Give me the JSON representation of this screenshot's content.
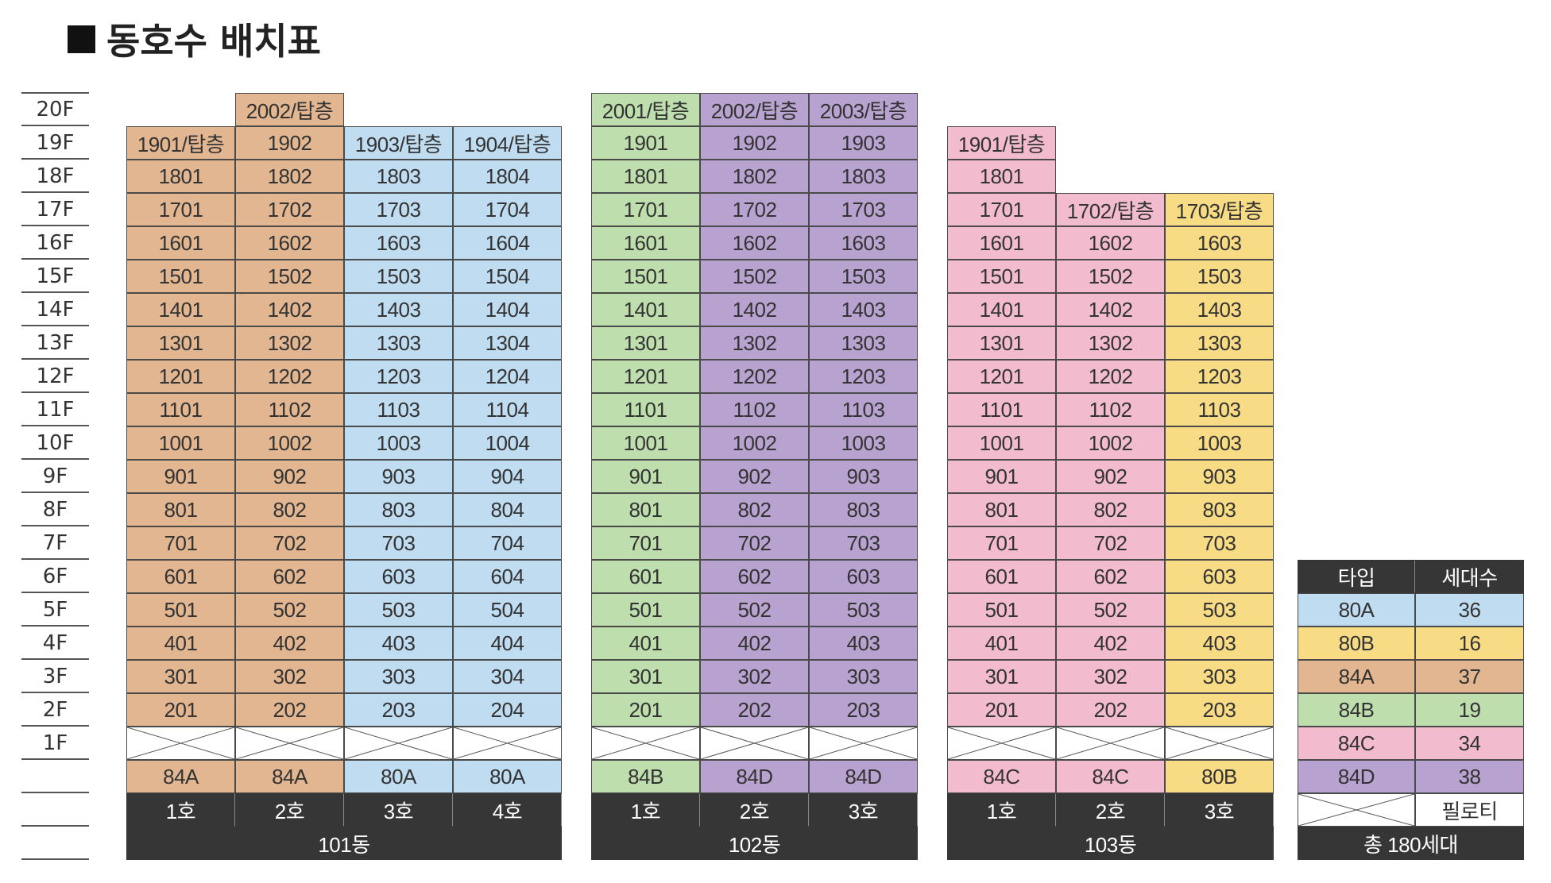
{
  "title": "동호수 배치표",
  "colors": {
    "80A": "#bfdcf1",
    "80B": "#f8dc85",
    "84A": "#e1b690",
    "84B": "#bfdeae",
    "84C": "#f2bcce",
    "84D": "#b8a2cf",
    "dark": "#363636"
  },
  "floors": [
    "20F",
    "19F",
    "18F",
    "17F",
    "16F",
    "15F",
    "14F",
    "13F",
    "12F",
    "11F",
    "10F",
    "9F",
    "8F",
    "7F",
    "6F",
    "5F",
    "4F",
    "3F",
    "2F",
    "1F"
  ],
  "buildings": [
    {
      "name": "101동",
      "lines": [
        {
          "ho": "1호",
          "type": "84A",
          "units": [
            "1901/탑층",
            "1801",
            "1701",
            "1601",
            "1501",
            "1401",
            "1301",
            "1201",
            "1101",
            "1001",
            "901",
            "801",
            "701",
            "601",
            "501",
            "401",
            "301",
            "201"
          ]
        },
        {
          "ho": "2호",
          "type": "84A",
          "units": [
            "2002/탑층",
            "1902",
            "1802",
            "1702",
            "1602",
            "1502",
            "1402",
            "1302",
            "1202",
            "1102",
            "1002",
            "902",
            "802",
            "702",
            "602",
            "502",
            "402",
            "302",
            "202"
          ]
        },
        {
          "ho": "3호",
          "type": "80A",
          "units": [
            "1903/탑층",
            "1803",
            "1703",
            "1603",
            "1503",
            "1403",
            "1303",
            "1203",
            "1103",
            "1003",
            "903",
            "803",
            "703",
            "603",
            "503",
            "403",
            "303",
            "203"
          ]
        },
        {
          "ho": "4호",
          "type": "80A",
          "units": [
            "1904/탑층",
            "1804",
            "1704",
            "1604",
            "1504",
            "1404",
            "1304",
            "1204",
            "1104",
            "1004",
            "904",
            "804",
            "704",
            "604",
            "504",
            "404",
            "304",
            "204"
          ]
        }
      ]
    },
    {
      "name": "102동",
      "lines": [
        {
          "ho": "1호",
          "type": "84B",
          "units": [
            "2001/탑층",
            "1901",
            "1801",
            "1701",
            "1601",
            "1501",
            "1401",
            "1301",
            "1201",
            "1101",
            "1001",
            "901",
            "801",
            "701",
            "601",
            "501",
            "401",
            "301",
            "201"
          ]
        },
        {
          "ho": "2호",
          "type": "84D",
          "units": [
            "2002/탑층",
            "1902",
            "1802",
            "1702",
            "1602",
            "1502",
            "1402",
            "1302",
            "1202",
            "1102",
            "1002",
            "902",
            "802",
            "702",
            "602",
            "502",
            "402",
            "302",
            "202"
          ]
        },
        {
          "ho": "3호",
          "type": "84D",
          "units": [
            "2003/탑층",
            "1903",
            "1803",
            "1703",
            "1603",
            "1503",
            "1403",
            "1303",
            "1203",
            "1103",
            "1003",
            "903",
            "803",
            "703",
            "603",
            "503",
            "403",
            "303",
            "203"
          ]
        }
      ]
    },
    {
      "name": "103동",
      "lines": [
        {
          "ho": "1호",
          "type": "84C",
          "units": [
            "1901/탑층",
            "1801",
            "1701",
            "1601",
            "1501",
            "1401",
            "1301",
            "1201",
            "1101",
            "1001",
            "901",
            "801",
            "701",
            "601",
            "501",
            "401",
            "301",
            "201"
          ]
        },
        {
          "ho": "2호",
          "type": "84C",
          "units": [
            "1702/탑층",
            "1602",
            "1502",
            "1402",
            "1302",
            "1202",
            "1102",
            "1002",
            "902",
            "802",
            "702",
            "602",
            "502",
            "402",
            "302",
            "202"
          ]
        },
        {
          "ho": "3호",
          "type": "80B",
          "units": [
            "1703/탑층",
            "1603",
            "1503",
            "1403",
            "1303",
            "1203",
            "1103",
            "1003",
            "903",
            "803",
            "703",
            "603",
            "503",
            "403",
            "303",
            "203"
          ]
        }
      ]
    }
  ],
  "legend": {
    "header_type": "타입",
    "header_count": "세대수",
    "rows": [
      {
        "type": "80A",
        "count": "36"
      },
      {
        "type": "80B",
        "count": "16"
      },
      {
        "type": "84A",
        "count": "37"
      },
      {
        "type": "84B",
        "count": "19"
      },
      {
        "type": "84C",
        "count": "34"
      },
      {
        "type": "84D",
        "count": "38"
      }
    ],
    "pilotis_label": "필로티",
    "total": "총 180세대"
  }
}
